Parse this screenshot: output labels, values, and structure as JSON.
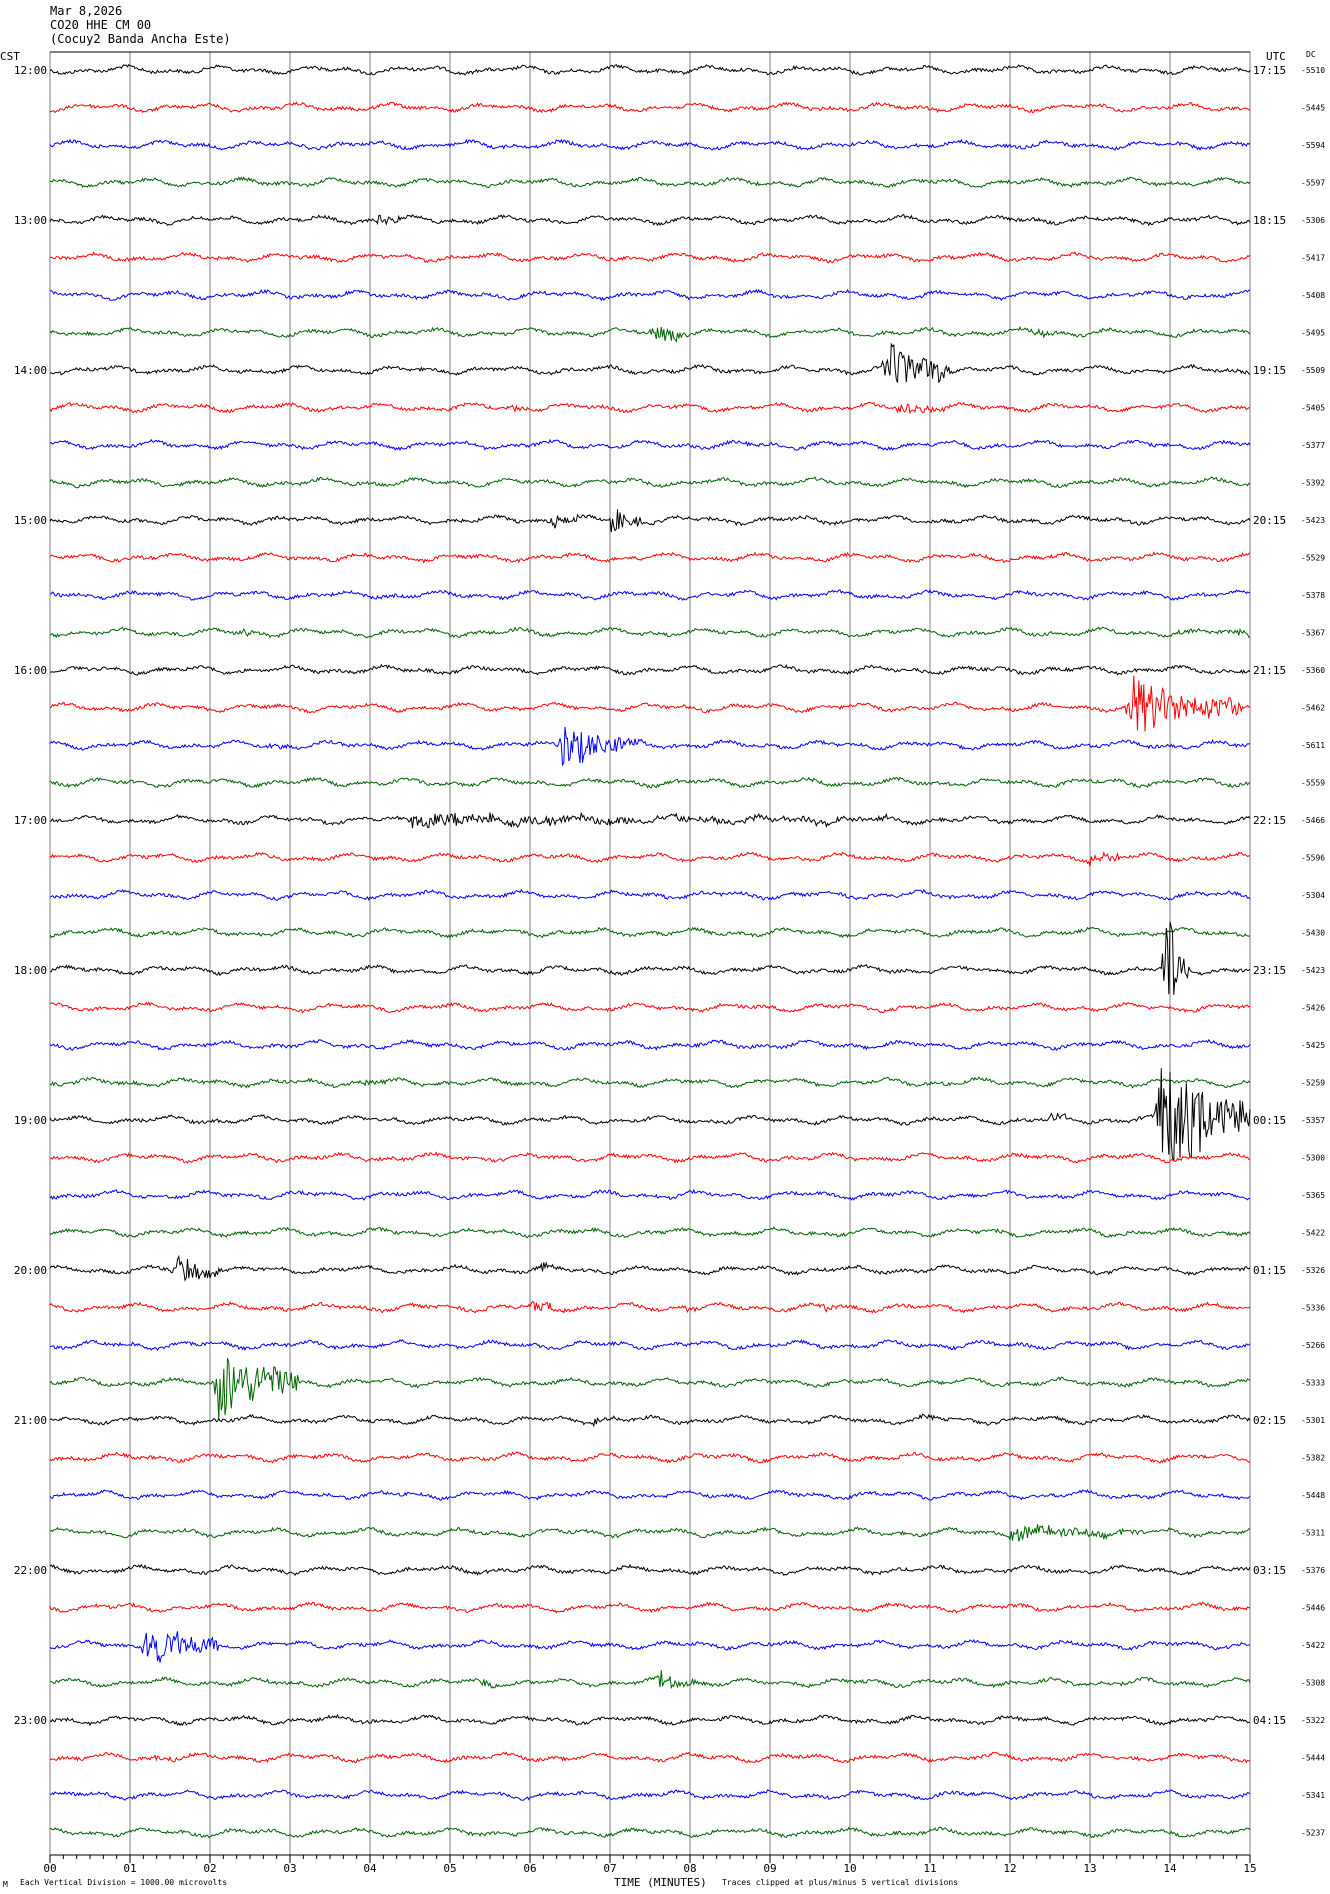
{
  "header": {
    "date": "Mar 8,2026",
    "station": "CO20 HHE CM 00",
    "site": "(Cocuy2 Banda Ancha Este)"
  },
  "left_tz": "CST",
  "right_tz": "UTC",
  "dc_label": "DC",
  "footer": {
    "left": "Each Vertical Division = 1000.00 microvolts",
    "center": "TIME (MINUTES)",
    "right": "Traces clipped at plus/minus 5 vertical divisions",
    "mark": "M"
  },
  "colors": {
    "trace_cycle": [
      "#000000",
      "#ff0000",
      "#0000ff",
      "#006400"
    ],
    "grid": "#7f7f7f",
    "background": "#ffffff"
  },
  "chart_data": {
    "type": "line",
    "title": "Mar 8,2026 CO20 HHE CM 00 (Cocuy2 Banda Ancha Este)",
    "xlabel": "TIME (MINUTES)",
    "xlim": [
      0,
      15
    ],
    "x_ticks": [
      "00",
      "01",
      "02",
      "03",
      "04",
      "05",
      "06",
      "07",
      "08",
      "09",
      "10",
      "11",
      "12",
      "13",
      "14",
      "15"
    ],
    "left_hour_labels": [
      "12:00",
      "13:00",
      "14:00",
      "15:00",
      "16:00",
      "17:00",
      "18:00",
      "19:00",
      "20:00",
      "21:00",
      "22:00",
      "23:00"
    ],
    "right_hour_labels": [
      "17:15",
      "18:15",
      "19:15",
      "20:15",
      "21:15",
      "22:15",
      "23:15",
      "00:15",
      "01:15",
      "02:15",
      "03:15",
      "04:15"
    ],
    "trace_minutes": 15,
    "traces_per_hour": 4,
    "dc_offsets": [
      "-5510",
      "-5445",
      "-5594",
      "-5597",
      "-5306",
      "-5417",
      "-5408",
      "-5495",
      "-5509",
      "-5405",
      "-5377",
      "-5392",
      "-5423",
      "-5529",
      "-5378",
      "-5367",
      "-5360",
      "-5462",
      "-5611",
      "-5559",
      "-5466",
      "-5596",
      "-5304",
      "-5430",
      "-5423",
      "-5426",
      "-5425",
      "-5259",
      "-5357",
      "-5300",
      "-5365",
      "-5422",
      "-5326",
      "-5336",
      "-5266",
      "-5333",
      "-5301",
      "-5382",
      "-5448",
      "-5311",
      "-5376",
      "-5446",
      "-5422",
      "-5308",
      "-5322",
      "-5444",
      "-5341",
      "-5237"
    ],
    "events": [
      {
        "trace": 4,
        "minute": 4.1,
        "amplitude": 0.4,
        "duration": 0.3
      },
      {
        "trace": 7,
        "minute": 7.55,
        "amplitude": 0.8,
        "duration": 0.4
      },
      {
        "trace": 7,
        "minute": 12.3,
        "amplitude": 0.3,
        "duration": 0.3
      },
      {
        "trace": 8,
        "minute": 10.45,
        "amplitude": 1.6,
        "duration": 0.8
      },
      {
        "trace": 9,
        "minute": 10.6,
        "amplitude": 0.4,
        "duration": 0.6
      },
      {
        "trace": 9,
        "minute": 5.8,
        "amplitude": 0.2,
        "duration": 0.2
      },
      {
        "trace": 12,
        "minute": 6.3,
        "amplitude": 0.4,
        "duration": 0.3
      },
      {
        "trace": 12,
        "minute": 7.0,
        "amplitude": 0.8,
        "duration": 0.4
      },
      {
        "trace": 12,
        "minute": 9.3,
        "amplitude": 0.2,
        "duration": 0.2
      },
      {
        "trace": 15,
        "minute": 2.4,
        "amplitude": 0.2,
        "duration": 0.2
      },
      {
        "trace": 15,
        "minute": 14.1,
        "amplitude": 0.3,
        "duration": 0.3
      },
      {
        "trace": 15,
        "minute": 14.85,
        "amplitude": 0.3,
        "duration": 0.15
      },
      {
        "trace": 17,
        "minute": 13.5,
        "amplitude": 1.7,
        "duration": 1.4
      },
      {
        "trace": 18,
        "minute": 6.4,
        "amplitude": 1.5,
        "duration": 0.7
      },
      {
        "trace": 18,
        "minute": 7.1,
        "amplitude": 0.4,
        "duration": 0.3
      },
      {
        "trace": 18,
        "minute": 2.8,
        "amplitude": 0.2,
        "duration": 0.2
      },
      {
        "trace": 18,
        "minute": 1.85,
        "amplitude": 0.2,
        "duration": 0.2
      },
      {
        "trace": 20,
        "minute": 4.5,
        "amplitude": 0.4,
        "duration": 6.0
      },
      {
        "trace": 21,
        "minute": 13.0,
        "amplitude": 0.4,
        "duration": 0.5
      },
      {
        "trace": 24,
        "minute": 13.95,
        "amplitude": 3.5,
        "duration": 0.3
      },
      {
        "trace": 27,
        "minute": 3.9,
        "amplitude": 0.2,
        "duration": 0.3
      },
      {
        "trace": 28,
        "minute": 13.85,
        "amplitude": 3.5,
        "duration": 1.2
      },
      {
        "trace": 28,
        "minute": 12.5,
        "amplitude": 0.4,
        "duration": 0.2
      },
      {
        "trace": 32,
        "minute": 1.55,
        "amplitude": 1.0,
        "duration": 0.6
      },
      {
        "trace": 32,
        "minute": 6.1,
        "amplitude": 0.3,
        "duration": 0.3
      },
      {
        "trace": 33,
        "minute": 6.05,
        "amplitude": 0.4,
        "duration": 0.4
      },
      {
        "trace": 33,
        "minute": 7.8,
        "amplitude": 0.3,
        "duration": 0.3
      },
      {
        "trace": 33,
        "minute": 9.7,
        "amplitude": 0.3,
        "duration": 0.2
      },
      {
        "trace": 35,
        "minute": 2.1,
        "amplitude": 2.2,
        "duration": 1.0
      },
      {
        "trace": 36,
        "minute": 6.8,
        "amplitude": 0.3,
        "duration": 0.3
      },
      {
        "trace": 36,
        "minute": 10.9,
        "amplitude": 0.2,
        "duration": 0.2
      },
      {
        "trace": 39,
        "minute": 12.0,
        "amplitude": 0.4,
        "duration": 1.6
      },
      {
        "trace": 42,
        "minute": 1.2,
        "amplitude": 1.4,
        "duration": 0.9
      },
      {
        "trace": 43,
        "minute": 5.4,
        "amplitude": 0.3,
        "duration": 0.2
      },
      {
        "trace": 43,
        "minute": 7.6,
        "amplitude": 0.5,
        "duration": 0.5
      },
      {
        "trace": 45,
        "minute": 1.3,
        "amplitude": 0.2,
        "duration": 0.3
      }
    ]
  }
}
